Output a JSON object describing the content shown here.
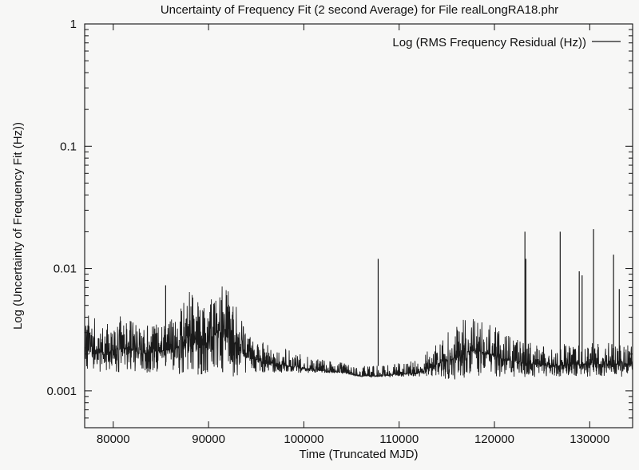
{
  "chart_data": {
    "type": "line",
    "title": "Uncertainty of Frequency Fit (2 second Average) for File realLongRA18.phr",
    "xlabel": "Time (Truncated MJD)",
    "ylabel": "Log (Uncertainty of Frequency Fit (Hz))",
    "xlim": [
      77000,
      134500
    ],
    "ylim": [
      0.0005,
      1
    ],
    "yscale": "log",
    "x_ticks": [
      80000,
      90000,
      100000,
      110000,
      120000,
      130000
    ],
    "x_tick_labels": [
      "80000",
      "90000",
      "100000",
      "110000",
      "120000",
      "130000"
    ],
    "y_ticks": [
      0.001,
      0.01,
      0.1,
      1
    ],
    "y_tick_labels": [
      "0.001",
      "0.01",
      "0.1",
      "1"
    ],
    "grid": false,
    "legend": {
      "position": "top-right"
    },
    "line_color": "#1a1a1a",
    "series": [
      {
        "name": "Log (RMS Frequency Residual (Hz))",
        "envelope": {
          "x": [
            77000,
            79000,
            81000,
            83000,
            85000,
            86500,
            88000,
            89500,
            91000,
            92500,
            94000,
            96000,
            98000,
            100000,
            102000,
            104000,
            106000,
            108000,
            110000,
            112000,
            114000,
            116000,
            117500,
            119000,
            121000,
            123000,
            125000,
            127000,
            129000,
            131000,
            133000,
            134500
          ],
          "low": [
            0.0014,
            0.0014,
            0.0014,
            0.0014,
            0.0014,
            0.0014,
            0.0013,
            0.0013,
            0.0014,
            0.0013,
            0.0014,
            0.0014,
            0.0014,
            0.0014,
            0.0014,
            0.0014,
            0.0013,
            0.0013,
            0.0013,
            0.0013,
            0.0013,
            0.0012,
            0.0013,
            0.0013,
            0.0013,
            0.0013,
            0.0013,
            0.0013,
            0.0013,
            0.0013,
            0.0013,
            0.0013
          ],
          "high": [
            0.0045,
            0.0035,
            0.0042,
            0.0035,
            0.0038,
            0.004,
            0.0075,
            0.005,
            0.008,
            0.006,
            0.003,
            0.0025,
            0.0022,
            0.002,
            0.0018,
            0.0017,
            0.0016,
            0.0016,
            0.0017,
            0.0018,
            0.0025,
            0.0035,
            0.0042,
            0.0038,
            0.003,
            0.0026,
            0.0024,
            0.0024,
            0.0025,
            0.0025,
            0.0025,
            0.0025
          ]
        },
        "spikes": {
          "x": [
            85500,
            107800,
            123200,
            123300,
            126900,
            128900,
            129200,
            130400,
            132500,
            133100
          ],
          "y": [
            0.0073,
            0.012,
            0.02,
            0.012,
            0.02,
            0.0095,
            0.0088,
            0.021,
            0.013,
            0.0068
          ]
        }
      }
    ]
  }
}
